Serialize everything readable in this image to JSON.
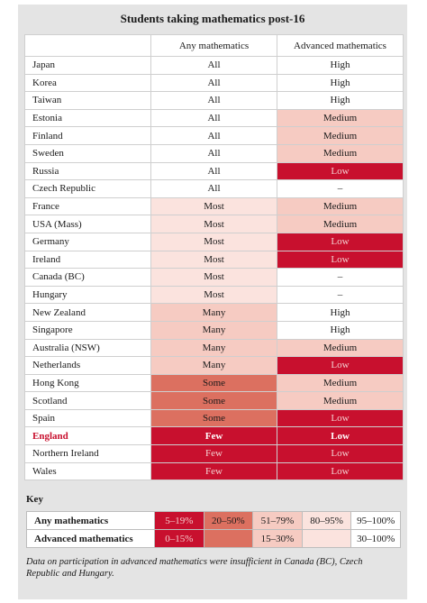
{
  "title": "Students taking mathematics post-16",
  "columns": {
    "country": "",
    "any": "Any mathematics",
    "advanced": "Advanced mathematics"
  },
  "colors": {
    "red": "#c8102e",
    "dark_pink": "#dc7060",
    "pink": "#f6cbc2",
    "light_pink": "#fbe3de",
    "white": "#ffffff",
    "panel": "#e4e4e4"
  },
  "rows": [
    {
      "country": "Japan",
      "any": "All",
      "any_level": "white",
      "advanced": "High",
      "adv_level": "white"
    },
    {
      "country": "Korea",
      "any": "All",
      "any_level": "white",
      "advanced": "High",
      "adv_level": "white"
    },
    {
      "country": "Taiwan",
      "any": "All",
      "any_level": "white",
      "advanced": "High",
      "adv_level": "white"
    },
    {
      "country": "Estonia",
      "any": "All",
      "any_level": "white",
      "advanced": "Medium",
      "adv_level": "p2"
    },
    {
      "country": "Finland",
      "any": "All",
      "any_level": "white",
      "advanced": "Medium",
      "adv_level": "p2"
    },
    {
      "country": "Sweden",
      "any": "All",
      "any_level": "white",
      "advanced": "Medium",
      "adv_level": "p2"
    },
    {
      "country": "Russia",
      "any": "All",
      "any_level": "white",
      "advanced": "Low",
      "adv_level": "red"
    },
    {
      "country": "Czech Republic",
      "any": "All",
      "any_level": "white",
      "advanced": "–",
      "adv_level": "white"
    },
    {
      "country": "France",
      "any": "Most",
      "any_level": "p1",
      "advanced": "Medium",
      "adv_level": "p2"
    },
    {
      "country": "USA (Mass)",
      "any": "Most",
      "any_level": "p1",
      "advanced": "Medium",
      "adv_level": "p2"
    },
    {
      "country": "Germany",
      "any": "Most",
      "any_level": "p1",
      "advanced": "Low",
      "adv_level": "red"
    },
    {
      "country": "Ireland",
      "any": "Most",
      "any_level": "p1",
      "advanced": "Low",
      "adv_level": "red"
    },
    {
      "country": "Canada (BC)",
      "any": "Most",
      "any_level": "p1",
      "advanced": "–",
      "adv_level": "white"
    },
    {
      "country": "Hungary",
      "any": "Most",
      "any_level": "p1",
      "advanced": "–",
      "adv_level": "white"
    },
    {
      "country": "New Zealand",
      "any": "Many",
      "any_level": "p2",
      "advanced": "High",
      "adv_level": "white"
    },
    {
      "country": "Singapore",
      "any": "Many",
      "any_level": "p2",
      "advanced": "High",
      "adv_level": "white"
    },
    {
      "country": "Australia (NSW)",
      "any": "Many",
      "any_level": "p2",
      "advanced": "Medium",
      "adv_level": "p2"
    },
    {
      "country": "Netherlands",
      "any": "Many",
      "any_level": "p2",
      "advanced": "Low",
      "adv_level": "red"
    },
    {
      "country": "Hong Kong",
      "any": "Some",
      "any_level": "p3",
      "advanced": "Medium",
      "adv_level": "p2"
    },
    {
      "country": "Scotland",
      "any": "Some",
      "any_level": "p3",
      "advanced": "Medium",
      "adv_level": "p2"
    },
    {
      "country": "Spain",
      "any": "Some",
      "any_level": "p3",
      "advanced": "Low",
      "adv_level": "red"
    },
    {
      "country": "England",
      "any": "Few",
      "any_level": "red",
      "advanced": "Low",
      "adv_level": "red",
      "highlight": true
    },
    {
      "country": "Northern Ireland",
      "any": "Few",
      "any_level": "red",
      "advanced": "Low",
      "adv_level": "red"
    },
    {
      "country": "Wales",
      "any": "Few",
      "any_level": "red",
      "advanced": "Low",
      "adv_level": "red"
    }
  ],
  "key": {
    "title": "Key",
    "rows": [
      {
        "label": "Any mathematics",
        "cells": [
          {
            "text": "5–19%",
            "level": "red"
          },
          {
            "text": "20–50%",
            "level": "p3"
          },
          {
            "text": "51–79%",
            "level": "p2"
          },
          {
            "text": "80–95%",
            "level": "p1"
          },
          {
            "text": "95–100%",
            "level": "white"
          }
        ]
      },
      {
        "label": "Advanced mathematics",
        "cells": [
          {
            "text": "0–15%",
            "level": "red"
          },
          {
            "text": "",
            "level": "p3"
          },
          {
            "text": "15–30%",
            "level": "p2"
          },
          {
            "text": "",
            "level": "p1"
          },
          {
            "text": "30–100%",
            "level": "white"
          }
        ]
      }
    ]
  },
  "note": "Data on participation in advanced mathematics were insufficient in Canada (BC), Czech Republic and Hungary."
}
